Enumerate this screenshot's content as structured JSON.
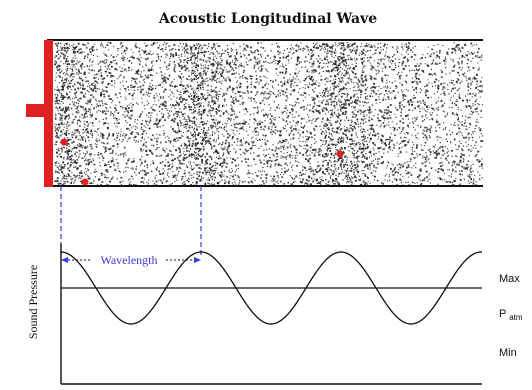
{
  "title": "Acoustic Longitudinal Wave",
  "labels": {
    "wavelength": "Wavelength",
    "y_axis": "Sound Pressure",
    "max": "Max",
    "p_atm_base": "P",
    "p_atm_sub": "atm",
    "min": "Min"
  },
  "colors": {
    "piston": "#e02020",
    "guide": "#3a3ad8",
    "ink": "#111111",
    "particles": "#1a1a1a",
    "background": "#ffffff"
  },
  "chart_data": {
    "type": "line",
    "title": "",
    "xlabel": "",
    "ylabel": "Sound Pressure",
    "y_tick_labels": [
      "Max",
      "Patm",
      "Min"
    ],
    "series": [
      {
        "shape": "sine",
        "cycles_shown": 3.15,
        "amplitude_relative_to_Patm": 1.0
      }
    ]
  }
}
